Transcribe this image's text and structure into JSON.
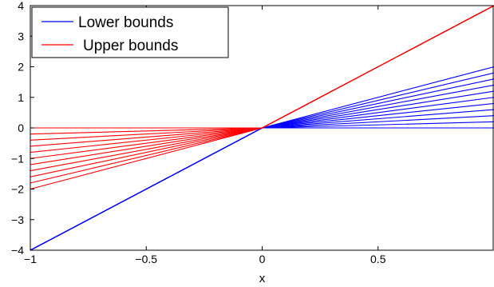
{
  "chart_data": {
    "type": "line",
    "title": "",
    "xlabel": "x",
    "ylabel": "",
    "xlim": [
      -1,
      1
    ],
    "ylim": [
      -4,
      4
    ],
    "x_ticks": [
      -1,
      -0.5,
      0,
      0.5
    ],
    "x_tick_labels": [
      "−1",
      "−0.5",
      "0",
      "0.5"
    ],
    "y_ticks": [
      -4,
      -3,
      -2,
      -1,
      0,
      1,
      2,
      3,
      4
    ],
    "y_tick_labels": [
      "−4",
      "−3",
      "−2",
      "−1",
      "0",
      "1",
      "2",
      "3",
      "4"
    ],
    "grid": false,
    "legend": {
      "placement": "top-left",
      "entries": [
        {
          "label": "Lower bounds",
          "color": "#0000ff"
        },
        {
          "label": "Upper bounds",
          "color": "#ff0000"
        }
      ]
    },
    "series": [
      {
        "name": "Lower bounds",
        "color": "#0000ff",
        "description": "piecewise linear lines y = 4x for x<0 and y = s*x for x>=0",
        "left_slope": 4,
        "right_slopes": [
          0,
          0.2,
          0.4,
          0.6,
          0.8,
          1.0,
          1.2,
          1.4,
          1.6,
          1.8,
          2.0
        ]
      },
      {
        "name": "Upper bounds",
        "color": "#ff0000",
        "description": "piecewise linear lines y = s*x for x<0 and y = 4x for x>=0",
        "right_slope": 4,
        "left_slopes": [
          0,
          0.2,
          0.4,
          0.6,
          0.8,
          1.0,
          1.2,
          1.4,
          1.6,
          1.8,
          2.0
        ]
      }
    ]
  }
}
